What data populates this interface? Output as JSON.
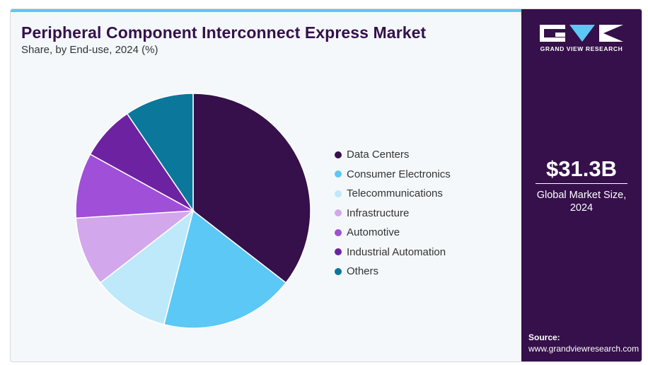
{
  "title": "Peripheral Component Interconnect Express Market",
  "subtitle": "Share, by End-use, 2024 (%)",
  "chart_data": {
    "type": "pie",
    "categories": [
      "Data Centers",
      "Consumer Electronics",
      "Telecommunications",
      "Infrastructure",
      "Automotive",
      "Industrial Automation",
      "Others"
    ],
    "values": [
      35.5,
      18.5,
      10.5,
      9.5,
      9.0,
      7.5,
      9.5
    ],
    "colors": [
      "#35104a",
      "#5bc8f5",
      "#bde9fa",
      "#d3a7ec",
      "#a04fd8",
      "#6d22a1",
      "#0a779b"
    ],
    "legend_position": "right",
    "start_angle": "12 o'clock",
    "direction": "clockwise"
  },
  "brand": {
    "name": "GRAND VIEW RESEARCH",
    "accent_color": "#5bc8f5",
    "panel_color": "#35104a"
  },
  "market": {
    "value": "$31.3B",
    "label": "Global Market Size, 2024"
  },
  "source": {
    "label": "Source:",
    "url": "www.grandviewresearch.com"
  }
}
